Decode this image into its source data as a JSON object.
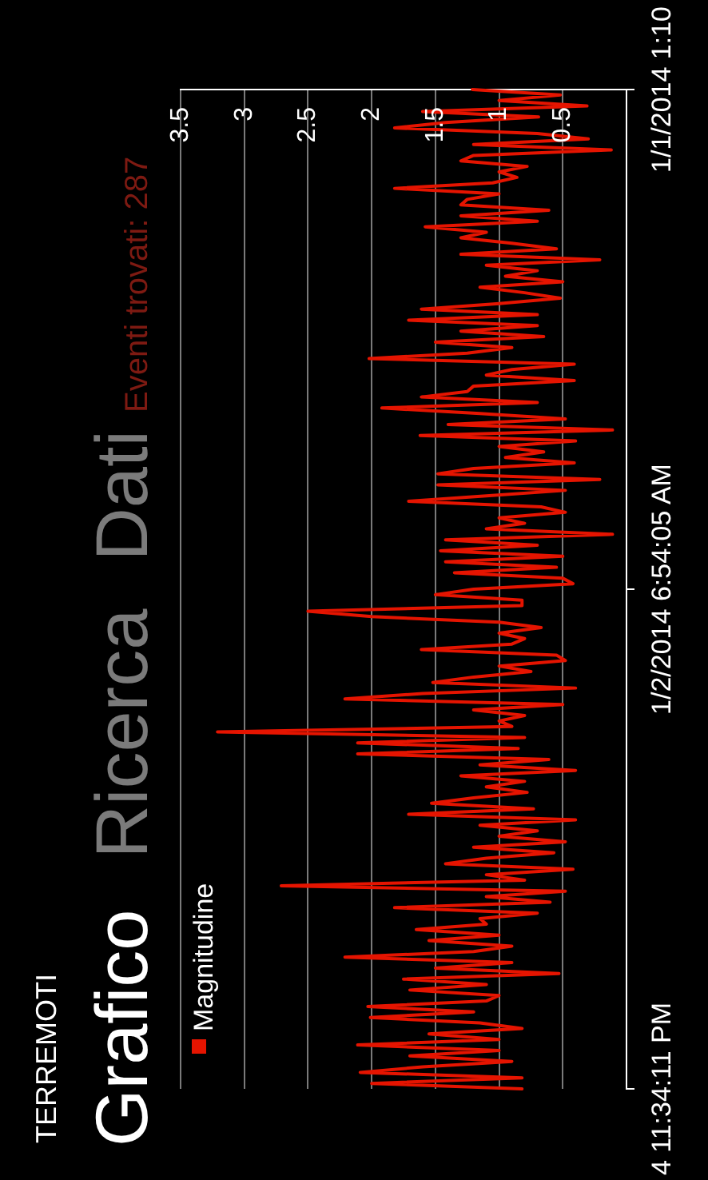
{
  "chart_data": {
    "type": "line",
    "orientation": "horizontal",
    "title": "TERREMOTI",
    "subtitle": "Grafico",
    "annotations": [
      "Ricerca",
      "Dati",
      "Eventi trovati: 287"
    ],
    "categories": [
      "1/1/2014 1:10",
      null,
      null,
      null,
      null,
      null,
      null,
      null,
      null,
      null,
      null,
      null,
      null,
      null,
      null,
      null,
      null,
      null,
      null,
      null,
      null,
      null,
      null,
      null,
      null,
      null,
      null,
      null,
      null,
      null,
      null,
      null,
      null,
      null,
      null,
      null,
      null,
      null,
      null,
      null,
      null,
      null,
      null,
      null,
      null,
      null,
      null,
      null,
      null,
      null,
      null,
      null,
      null,
      null,
      null,
      null,
      null,
      null,
      null,
      null,
      null,
      null,
      null,
      null,
      null,
      null,
      null,
      null,
      null,
      null,
      null,
      null,
      null,
      null,
      null,
      null,
      null,
      null,
      null,
      null,
      null,
      null,
      null,
      null,
      null,
      null,
      null,
      null,
      null,
      null,
      null,
      "1/2/2014 6:54:05 AM",
      null,
      null,
      null,
      null,
      null,
      null,
      null,
      null,
      null,
      null,
      null,
      null,
      null,
      null,
      null,
      null,
      null,
      null,
      null,
      null,
      null,
      null,
      null,
      null,
      null,
      null,
      null,
      null,
      null,
      null,
      null,
      null,
      null,
      null,
      null,
      null,
      null,
      null,
      null,
      null,
      null,
      null,
      null,
      null,
      null,
      null,
      null,
      null,
      null,
      null,
      null,
      null,
      null,
      null,
      null,
      null,
      null,
      null,
      null,
      null,
      null,
      null,
      null,
      null,
      null,
      null,
      null,
      null,
      null,
      null,
      null,
      null,
      null,
      null,
      null,
      null,
      null,
      null,
      null,
      null,
      null,
      null,
      null,
      null,
      null,
      null,
      null,
      null,
      null,
      null,
      "4 11:34:11 PM"
    ],
    "series": [
      {
        "name": "Magnitudine",
        "color": "#e51400",
        "values": [
          1.21,
          0.52,
          1.0,
          0.31,
          1.6,
          0.69,
          1.42,
          1.82,
          0.7,
          0.3,
          1.2,
          0.12,
          1.2,
          1.3,
          0.78,
          1.0,
          0.86,
          1.05,
          1.82,
          1.0,
          1.25,
          1.3,
          0.61,
          1.3,
          0.7,
          1.58,
          1.1,
          1.3,
          0.9,
          0.55,
          1.3,
          0.21,
          1.1,
          0.7,
          0.95,
          0.5,
          1.15,
          0.8,
          0.52,
          1.0,
          1.61,
          0.7,
          1.71,
          0.7,
          1.3,
          0.65,
          1.5,
          0.9,
          1.25,
          2.02,
          0.41,
          0.9,
          1.1,
          0.41,
          1.2,
          1.25,
          1.61,
          0.7,
          1.92,
          1.15,
          0.48,
          1.4,
          0.11,
          1.62,
          0.4,
          1.0,
          0.65,
          0.95,
          0.41,
          1.2,
          1.48,
          0.21,
          1.48,
          0.48,
          1.1,
          1.71,
          0.67,
          0.48,
          1.0,
          0.8,
          1.1,
          0.11,
          1.42,
          0.7,
          1.46,
          0.5,
          1.42,
          0.55,
          1.35,
          0.5,
          0.42,
          1.2,
          1.5,
          0.82,
          0.82,
          2.5,
          2.0,
          1.0,
          0.67,
          1.0,
          0.8,
          0.9,
          1.61,
          0.55,
          0.48,
          1.0,
          0.75,
          1.2,
          1.52,
          0.4,
          1.6,
          2.21,
          0.5,
          1.2,
          0.8,
          1.0,
          0.9,
          3.21,
          0.8,
          2.11,
          0.85,
          2.11,
          0.61,
          1.15,
          0.4,
          1.3,
          0.8,
          1.1,
          0.78,
          1.2,
          1.53,
          0.73,
          1.71,
          0.4,
          1.15,
          0.7,
          1.0,
          0.48,
          1.2,
          0.57,
          1.1,
          1.42,
          0.42,
          1.1,
          0.8,
          2.71,
          0.48,
          1.1,
          0.6,
          1.82,
          0.7,
          1.15,
          1.1,
          1.65,
          1.0,
          1.55,
          0.9,
          1.2,
          2.21,
          0.9,
          1.5,
          0.53,
          1.75,
          1.1,
          1.7,
          1.0,
          1.1,
          2.03,
          1.2,
          2.01,
          1.15,
          0.82,
          1.55,
          1.0,
          2.11,
          1.0,
          1.7,
          0.9,
          1.6,
          2.09,
          0.82,
          2.0,
          0.82
        ]
      }
    ],
    "xlim": [
      3.5,
      0
    ],
    "xticks": [
      0.5,
      1,
      1.5,
      2,
      2.5,
      3,
      3.5
    ],
    "grid": "x",
    "legend": "bottom left"
  }
}
